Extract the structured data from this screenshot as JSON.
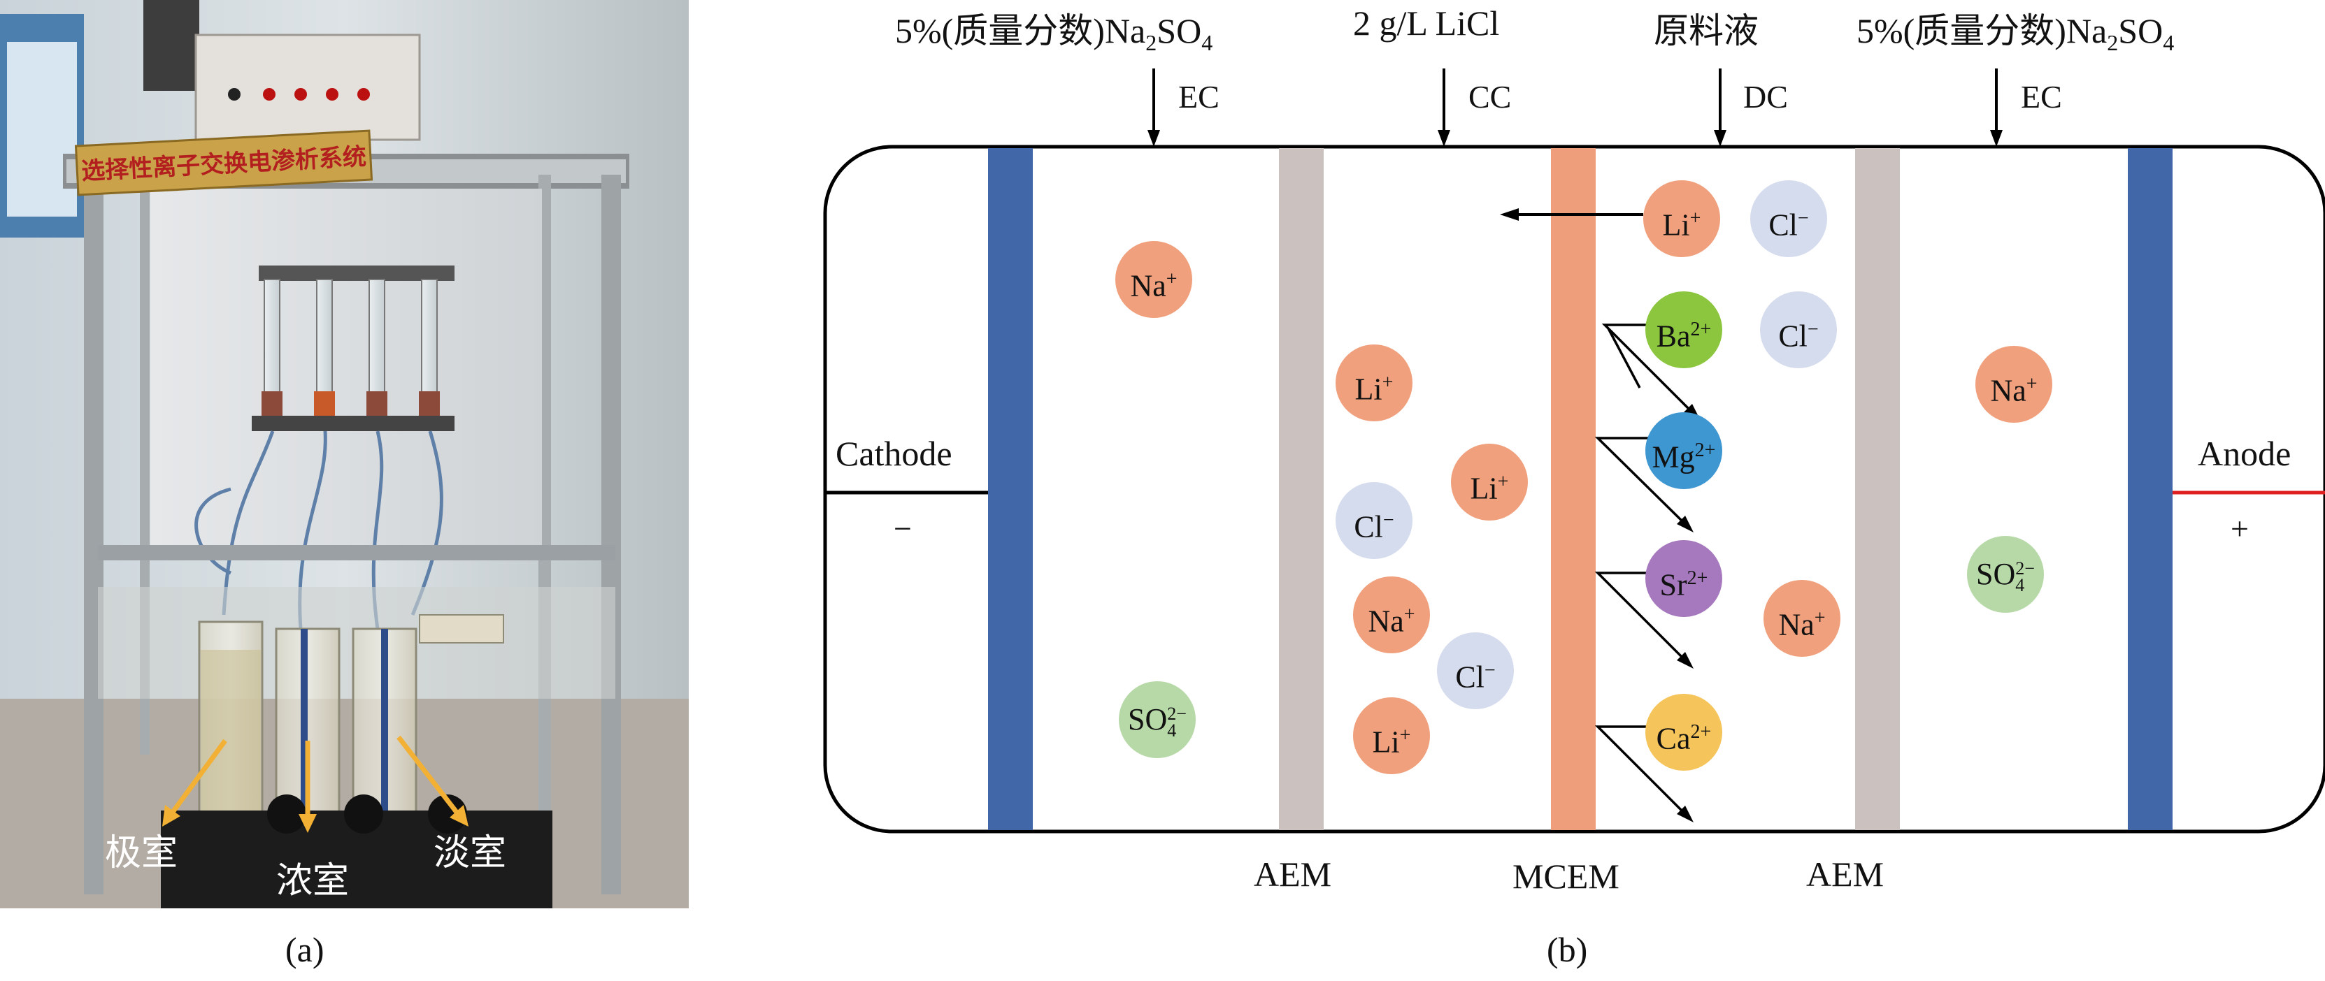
{
  "captions": {
    "a": "(a)",
    "b": "(b)"
  },
  "photo": {
    "sign_text": "选择性离子交换电渗析系统",
    "chamber_labels": [
      "极室",
      "浓室",
      "淡室"
    ],
    "arrow_color": "#f2b134"
  },
  "diagram": {
    "feeds": [
      {
        "solution": [
          "5%(质量分数)Na",
          "2",
          "SO",
          "4"
        ],
        "chamber": "EC"
      },
      {
        "solution": [
          "2 g/L LiCl"
        ],
        "chamber": "CC"
      },
      {
        "solution": [
          "原料液"
        ],
        "chamber": "DC"
      },
      {
        "solution": [
          "5%(质量分数)Na",
          "2",
          "SO",
          "4"
        ],
        "chamber": "EC"
      }
    ],
    "membranes": [
      "AEM",
      "MCEM",
      "AEM"
    ],
    "electrodes": {
      "cathode": {
        "label": "Cathode",
        "sign": "−"
      },
      "anode": {
        "label": "Anode",
        "sign": "+"
      }
    },
    "ions": [
      {
        "base": "Na",
        "charge": "+",
        "color": "#f0a07c"
      },
      {
        "base": "SO",
        "sub": "4",
        "charge": "2−",
        "color": "#b7d9a8"
      },
      {
        "base": "Li",
        "charge": "+",
        "color": "#f0a07c"
      },
      {
        "base": "Li",
        "charge": "+",
        "color": "#f0a07c"
      },
      {
        "base": "Cl",
        "charge": "−",
        "color": "#d5dced"
      },
      {
        "base": "Na",
        "charge": "+",
        "color": "#f0a07c"
      },
      {
        "base": "Cl",
        "charge": "−",
        "color": "#d5dced"
      },
      {
        "base": "Li",
        "charge": "+",
        "color": "#f0a07c"
      },
      {
        "base": "Li",
        "charge": "+",
        "color": "#f0a07c"
      },
      {
        "base": "Cl",
        "charge": "−",
        "color": "#d5dced"
      },
      {
        "base": "Ba",
        "charge": "2+",
        "color": "#8cc63f"
      },
      {
        "base": "Cl",
        "charge": "−",
        "color": "#d5dced"
      },
      {
        "base": "Mg",
        "charge": "2+",
        "color": "#3e97d1"
      },
      {
        "base": "Sr",
        "charge": "2+",
        "color": "#a678bd"
      },
      {
        "base": "Na",
        "charge": "+",
        "color": "#f0a07c"
      },
      {
        "base": "Ca",
        "charge": "2+",
        "color": "#f5c45a"
      },
      {
        "base": "Na",
        "charge": "+",
        "color": "#f0a07c"
      },
      {
        "base": "SO",
        "sub": "4",
        "charge": "2−",
        "color": "#b7d9a8"
      }
    ],
    "colors": {
      "electrode_plate": "#4267a8",
      "aem": "#cbc2bf",
      "mcem": "#ee9e7b",
      "anode_wire": "#e02020"
    }
  }
}
